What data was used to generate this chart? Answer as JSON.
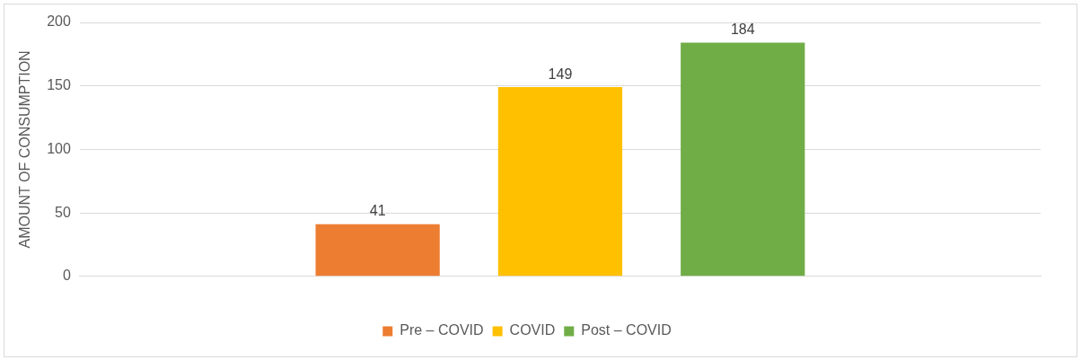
{
  "chart_data": {
    "type": "bar",
    "ylabel": "AMOUNT OF CONSUMPTION",
    "categories": [
      null
    ],
    "series": [
      {
        "name": "Pre – COVID",
        "color": "#ed7d31",
        "values": [
          41
        ]
      },
      {
        "name": "COVID",
        "color": "#ffc000",
        "values": [
          149
        ]
      },
      {
        "name": "Post – COVID",
        "color": "#70ad47",
        "values": [
          184
        ]
      }
    ],
    "ylim": [
      0,
      200
    ],
    "yticks": [
      0,
      50,
      100,
      150,
      200
    ],
    "grid": "y",
    "legend": "bottom",
    "data_labels": true
  }
}
